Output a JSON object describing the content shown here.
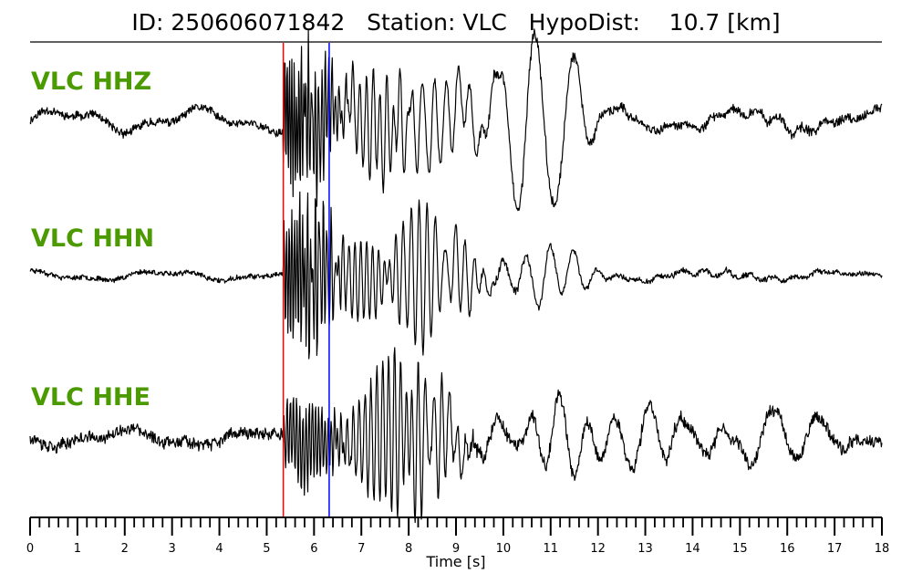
{
  "title": "ID: 250606071842   Station: VLC   HypoDist:    10.7 [km]",
  "chart_data": {
    "type": "line",
    "xlabel": "Time [s]",
    "xlim": [
      0,
      18
    ],
    "x_major_ticks": [
      0,
      1,
      2,
      3,
      4,
      5,
      6,
      7,
      8,
      9,
      10,
      11,
      12,
      13,
      14,
      15,
      16,
      17,
      18
    ],
    "x_minor_tick_step": 0.2,
    "traces": [
      {
        "name": "VLC HHZ",
        "label_color": "#4a9a00",
        "noise": 0.05,
        "coda": 0.34,
        "slow_amp": 0.12,
        "seed": 11,
        "bursts": [
          [
            5.5,
            0.9,
            20,
            0.5
          ],
          [
            6.1,
            0.8,
            14,
            0.4
          ],
          [
            7.3,
            0.7,
            7,
            0.7
          ],
          [
            8.5,
            0.6,
            4,
            1.0
          ],
          [
            10.3,
            1.0,
            1.25,
            0.8
          ],
          [
            11.1,
            0.75,
            1.3,
            0.8
          ]
        ]
      },
      {
        "name": "VLC HHN",
        "label_color": "#4a9a00",
        "noise": 0.03,
        "coda": 0.22,
        "slow_amp": 0.05,
        "seed": 23,
        "bursts": [
          [
            5.6,
            0.85,
            18,
            0.6
          ],
          [
            6.1,
            0.8,
            12,
            0.4
          ],
          [
            7.0,
            0.55,
            8,
            0.7
          ],
          [
            8.2,
            1.0,
            6,
            0.5
          ],
          [
            9.0,
            0.6,
            5,
            0.5
          ],
          [
            11.0,
            0.35,
            2,
            0.9
          ]
        ]
      },
      {
        "name": "VLC HHE",
        "label_color": "#4a9a00",
        "noise": 0.07,
        "coda": 0.34,
        "slow_amp": 0.08,
        "seed": 37,
        "bursts": [
          [
            5.8,
            0.55,
            15,
            0.8
          ],
          [
            7.6,
            1.0,
            8,
            0.8
          ],
          [
            8.5,
            0.7,
            6,
            0.6
          ],
          [
            11.2,
            0.5,
            1.6,
            1.0
          ],
          [
            13.1,
            0.4,
            1.3,
            1.0
          ],
          [
            15.8,
            0.4,
            1.0,
            1.0
          ]
        ]
      }
    ],
    "picks": [
      {
        "phase": "P",
        "time": 5.35,
        "color": "#ff0000"
      },
      {
        "phase": "S",
        "time": 6.32,
        "color": "#0000ff"
      }
    ],
    "line_color": "#000000",
    "grid": false,
    "legend": "none"
  }
}
